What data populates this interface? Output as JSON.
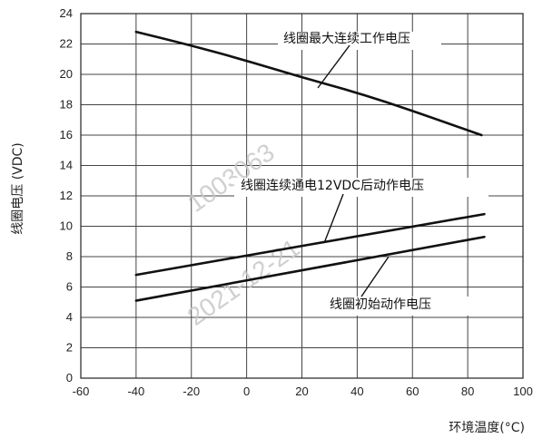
{
  "chart_data": {
    "type": "line",
    "xlabel": "环境温度(°C)",
    "ylabel": "线圈电压 (VDC)",
    "xlim": [
      -60,
      100
    ],
    "ylim": [
      0,
      24
    ],
    "xticks": [
      -60,
      -40,
      -20,
      0,
      20,
      40,
      60,
      80,
      100
    ],
    "yticks": [
      0,
      2,
      4,
      6,
      8,
      10,
      12,
      14,
      16,
      18,
      20,
      22,
      24
    ],
    "grid": true,
    "series": [
      {
        "name": "线圈最大连续工作电压",
        "x": [
          -40,
          -20,
          0,
          20,
          40,
          60,
          85
        ],
        "y": [
          22.8,
          21.9,
          20.9,
          19.8,
          18.8,
          17.6,
          16.0
        ]
      },
      {
        "name": "线圈连续通电12VDC后动作电压",
        "x": [
          -40,
          86
        ],
        "y": [
          6.8,
          10.8
        ]
      },
      {
        "name": "线圈初始动作电压",
        "x": [
          -40,
          86
        ],
        "y": [
          5.1,
          9.3
        ]
      }
    ],
    "watermark": [
      "1003063",
      "2021-12-21"
    ]
  }
}
